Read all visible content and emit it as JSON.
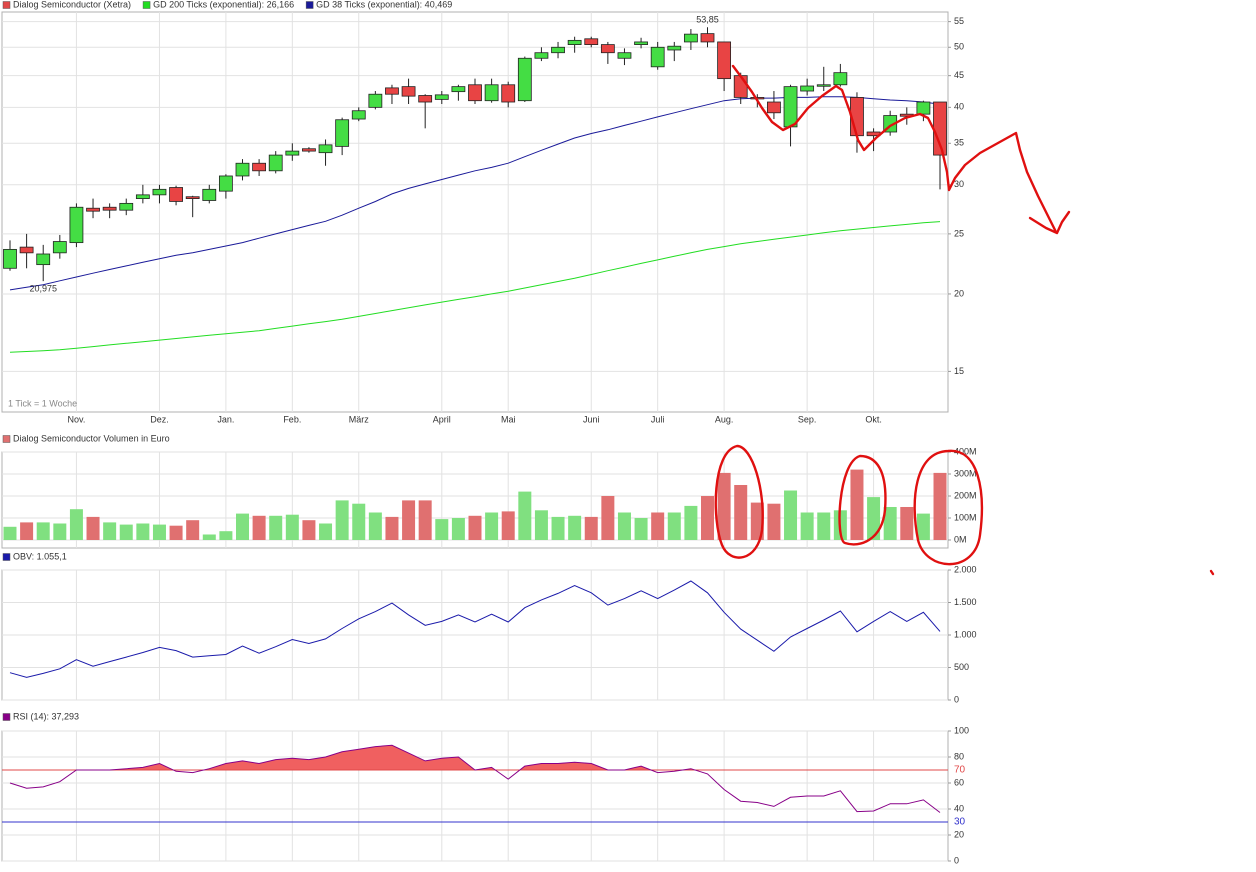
{
  "chart_data": [
    {
      "type": "candlestick",
      "categories": [
        null,
        null,
        null,
        null,
        "Nov.",
        null,
        null,
        null,
        null,
        "Dez.",
        null,
        null,
        null,
        "Jan.",
        null,
        null,
        null,
        "Feb.",
        null,
        null,
        null,
        "März",
        null,
        null,
        null,
        null,
        "April",
        null,
        null,
        null,
        "Mai",
        null,
        null,
        null,
        null,
        "Juni",
        null,
        null,
        null,
        "Juli",
        null,
        null,
        null,
        "Aug.",
        null,
        null,
        null,
        null,
        "Sep.",
        null,
        null,
        null,
        "Okt.",
        null,
        null,
        null,
        null
      ],
      "series": [
        {
          "name": "Dialog Semiconductor (Xetra)",
          "color": "#e04848",
          "open": [
            22,
            23.8,
            22.3,
            23.3,
            24.2,
            27.5,
            27.6,
            27.3,
            28.5,
            28.9,
            29.7,
            28.7,
            28.3,
            29.3,
            31,
            32.5,
            31.6,
            33.5,
            34.3,
            33.8,
            34.6,
            38.3,
            40,
            43,
            43.2,
            41.8,
            41.2,
            42.4,
            43.5,
            41,
            43.5,
            41,
            48,
            49,
            50.5,
            51.6,
            50.5,
            48,
            50.5,
            46.5,
            49.5,
            51,
            52.6,
            51,
            45,
            41.5,
            40.8,
            37.2,
            42.5,
            43.3,
            43.5,
            41.5,
            36.5,
            36.5,
            39,
            39,
            40.8
          ],
          "high": [
            24.4,
            25,
            24,
            24.9,
            28,
            28.5,
            28,
            28.5,
            30,
            30,
            29.9,
            28.8,
            30,
            31.2,
            33,
            33,
            34,
            35,
            34.5,
            35.5,
            38.5,
            40,
            42.5,
            43.5,
            44.5,
            42,
            42.5,
            43.5,
            44.5,
            44.5,
            44,
            48.3,
            50,
            51,
            52,
            52,
            51,
            49.8,
            51.8,
            51,
            51,
            53.5,
            53.85,
            51,
            45.5,
            42,
            42.5,
            43.5,
            44.5,
            46.5,
            47,
            42.3,
            37,
            39.5,
            40,
            41,
            40.8
          ],
          "low": [
            21.8,
            22,
            20.975,
            22.8,
            23.8,
            26.5,
            26.5,
            26.8,
            28,
            28,
            27.8,
            26.6,
            28,
            28.5,
            30.5,
            31,
            31.3,
            32.8,
            33.8,
            32.2,
            33.5,
            38,
            39.7,
            40.5,
            40.5,
            37,
            40.5,
            41,
            40.5,
            40.7,
            40,
            40.8,
            47.5,
            48,
            49,
            50,
            47,
            46.8,
            49.8,
            46,
            47.5,
            49.5,
            50,
            42.5,
            40.5,
            40,
            38.3,
            34.6,
            41.8,
            42.5,
            43.2,
            33.8,
            34,
            36,
            37.5,
            38,
            29.5
          ],
          "close": [
            23.6,
            23.3,
            23.2,
            24.3,
            27.6,
            27.2,
            27.3,
            28,
            28.9,
            29.5,
            28.2,
            28.5,
            29.5,
            31,
            32.5,
            31.6,
            33.5,
            34,
            34,
            34.8,
            38.2,
            39.5,
            42,
            42,
            41.7,
            40.8,
            41.9,
            43.2,
            41,
            43.5,
            40.8,
            48,
            49,
            50,
            51.3,
            50.5,
            49,
            49,
            51,
            50,
            50.2,
            52.5,
            51,
            44.5,
            41.5,
            41.3,
            39.2,
            43.2,
            43.3,
            43.5,
            45.5,
            36,
            36,
            38.8,
            38.7,
            40.8,
            33.5
          ]
        },
        {
          "name": "GD 200 Ticks (exponential): 26,166",
          "color": "#22dd22",
          "values": [
            16.1,
            16.15,
            16.2,
            16.25,
            16.35,
            16.45,
            16.55,
            16.65,
            16.75,
            16.85,
            16.95,
            17.05,
            17.15,
            17.25,
            17.35,
            17.45,
            17.6,
            17.75,
            17.9,
            18.05,
            18.2,
            18.4,
            18.6,
            18.8,
            19.0,
            19.2,
            19.4,
            19.6,
            19.8,
            20.0,
            20.2,
            20.45,
            20.7,
            20.95,
            21.2,
            21.5,
            21.8,
            22.1,
            22.4,
            22.7,
            23.0,
            23.3,
            23.6,
            23.85,
            24.1,
            24.3,
            24.5,
            24.7,
            24.9,
            25.1,
            25.3,
            25.45,
            25.6,
            25.75,
            25.9,
            26.05,
            26.166
          ]
        },
        {
          "name": "GD 38 Ticks (exponential): 40,469",
          "color": "#1a1a99",
          "values": [
            20.3,
            20.5,
            20.7,
            21.0,
            21.3,
            21.6,
            21.9,
            22.2,
            22.5,
            22.8,
            23.1,
            23.3,
            23.6,
            23.9,
            24.2,
            24.6,
            25.0,
            25.4,
            25.8,
            26.2,
            26.8,
            27.5,
            28.2,
            29.0,
            29.6,
            30.1,
            30.6,
            31.1,
            31.6,
            32.0,
            32.5,
            33.3,
            34.1,
            34.9,
            35.7,
            36.3,
            36.8,
            37.4,
            38.0,
            38.6,
            39.2,
            39.8,
            40.4,
            41.0,
            41.3,
            41.4,
            41.4,
            41.5,
            41.5,
            41.6,
            41.6,
            41.5,
            41.3,
            41.1,
            41.0,
            40.8,
            40.469
          ]
        }
      ],
      "up_color": "#44dd44",
      "down_color": "#e84444",
      "log_scale": true,
      "ylim": [
        12.9,
        57
      ],
      "yticks": [
        15,
        20,
        25,
        30,
        35,
        40,
        45,
        50,
        55
      ],
      "grid": true,
      "annotations": [
        {
          "value": 53.85,
          "label": "53,85"
        },
        {
          "value": 20.975,
          "label": "20,975"
        }
      ],
      "note": "1 Tick = 1 Woche"
    },
    {
      "type": "bar",
      "title": "Dialog Semiconductor Volumen in Euro",
      "color": "#e07070",
      "values": [
        60,
        80,
        80,
        75,
        140,
        105,
        80,
        70,
        75,
        70,
        65,
        90,
        25,
        40,
        120,
        110,
        110,
        115,
        90,
        75,
        180,
        165,
        125,
        105,
        180,
        180,
        95,
        100,
        110,
        125,
        130,
        220,
        135,
        105,
        110,
        105,
        200,
        125,
        100,
        125,
        125,
        155,
        200,
        305,
        250,
        170,
        165,
        225,
        125,
        125,
        135,
        320,
        195,
        150,
        150,
        120,
        305
      ],
      "colors": [
        "#80e080",
        "#e07070",
        "#80e080",
        "#80e080",
        "#80e080",
        "#e07070",
        "#80e080",
        "#80e080",
        "#80e080",
        "#80e080",
        "#e07070",
        "#e07070",
        "#80e080",
        "#80e080",
        "#80e080",
        "#e07070",
        "#80e080",
        "#80e080",
        "#e07070",
        "#80e080",
        "#80e080",
        "#80e080",
        "#80e080",
        "#e07070",
        "#e07070",
        "#e07070",
        "#80e080",
        "#80e080",
        "#e07070",
        "#80e080",
        "#e07070",
        "#80e080",
        "#80e080",
        "#80e080",
        "#80e080",
        "#e07070",
        "#e07070",
        "#80e080",
        "#80e080",
        "#e07070",
        "#80e080",
        "#80e080",
        "#e07070",
        "#e07070",
        "#e07070",
        "#e07070",
        "#e07070",
        "#80e080",
        "#80e080",
        "#80e080",
        "#80e080",
        "#e07070",
        "#80e080",
        "#80e080",
        "#e07070",
        "#80e080",
        "#e07070"
      ],
      "ylim": [
        -36.4,
        400
      ],
      "yticks": [
        {
          "value": 0,
          "label": "0M"
        },
        {
          "value": 100,
          "label": "100M"
        },
        {
          "value": 200,
          "label": "200M"
        },
        {
          "value": 300,
          "label": "300M"
        },
        {
          "value": 400,
          "label": "400M"
        }
      ],
      "grid": true
    },
    {
      "type": "line",
      "title": "OBV: 1.055,1",
      "color": "#1a1aaa",
      "values": [
        420,
        350,
        410,
        480,
        620,
        520,
        590,
        660,
        730,
        810,
        760,
        660,
        680,
        700,
        830,
        720,
        820,
        930,
        870,
        940,
        1100,
        1250,
        1360,
        1490,
        1310,
        1150,
        1210,
        1310,
        1200,
        1320,
        1200,
        1420,
        1540,
        1640,
        1760,
        1650,
        1460,
        1560,
        1680,
        1560,
        1690,
        1830,
        1650,
        1350,
        1090,
        920,
        750,
        970,
        1100,
        1230,
        1370,
        1050,
        1210,
        1360,
        1210,
        1350,
        1055.1
      ],
      "ylim": [
        0,
        2000
      ],
      "yticks": [
        0,
        500,
        {
          "value": 1000,
          "label": "1.000"
        },
        {
          "value": 1500,
          "label": "1.500"
        },
        {
          "value": 2000,
          "label": "2.000"
        }
      ],
      "grid": true
    },
    {
      "type": "line",
      "title": "RSI (14): 37,293",
      "color": "#880088",
      "values": [
        60,
        56,
        57,
        61,
        70,
        70,
        70,
        71,
        72,
        75,
        69,
        68,
        71,
        75,
        77,
        75,
        78,
        79,
        78,
        80,
        84,
        86,
        88,
        89,
        83,
        77,
        79,
        80,
        70,
        72,
        63,
        73,
        75,
        75,
        76,
        75,
        70,
        70,
        73,
        68,
        69,
        71,
        67,
        55,
        46,
        45,
        42,
        49,
        50,
        50,
        54,
        38,
        38.5,
        44,
        44,
        47,
        37.293
      ],
      "ylim": [
        0,
        100
      ],
      "yticks": [
        0,
        20,
        40,
        60,
        80,
        100
      ],
      "grid": true,
      "reference_lines": [
        {
          "value": 70,
          "color": "#e04848",
          "fill": "#f06060"
        },
        {
          "value": 30,
          "color": "#3333cc"
        }
      ]
    }
  ]
}
